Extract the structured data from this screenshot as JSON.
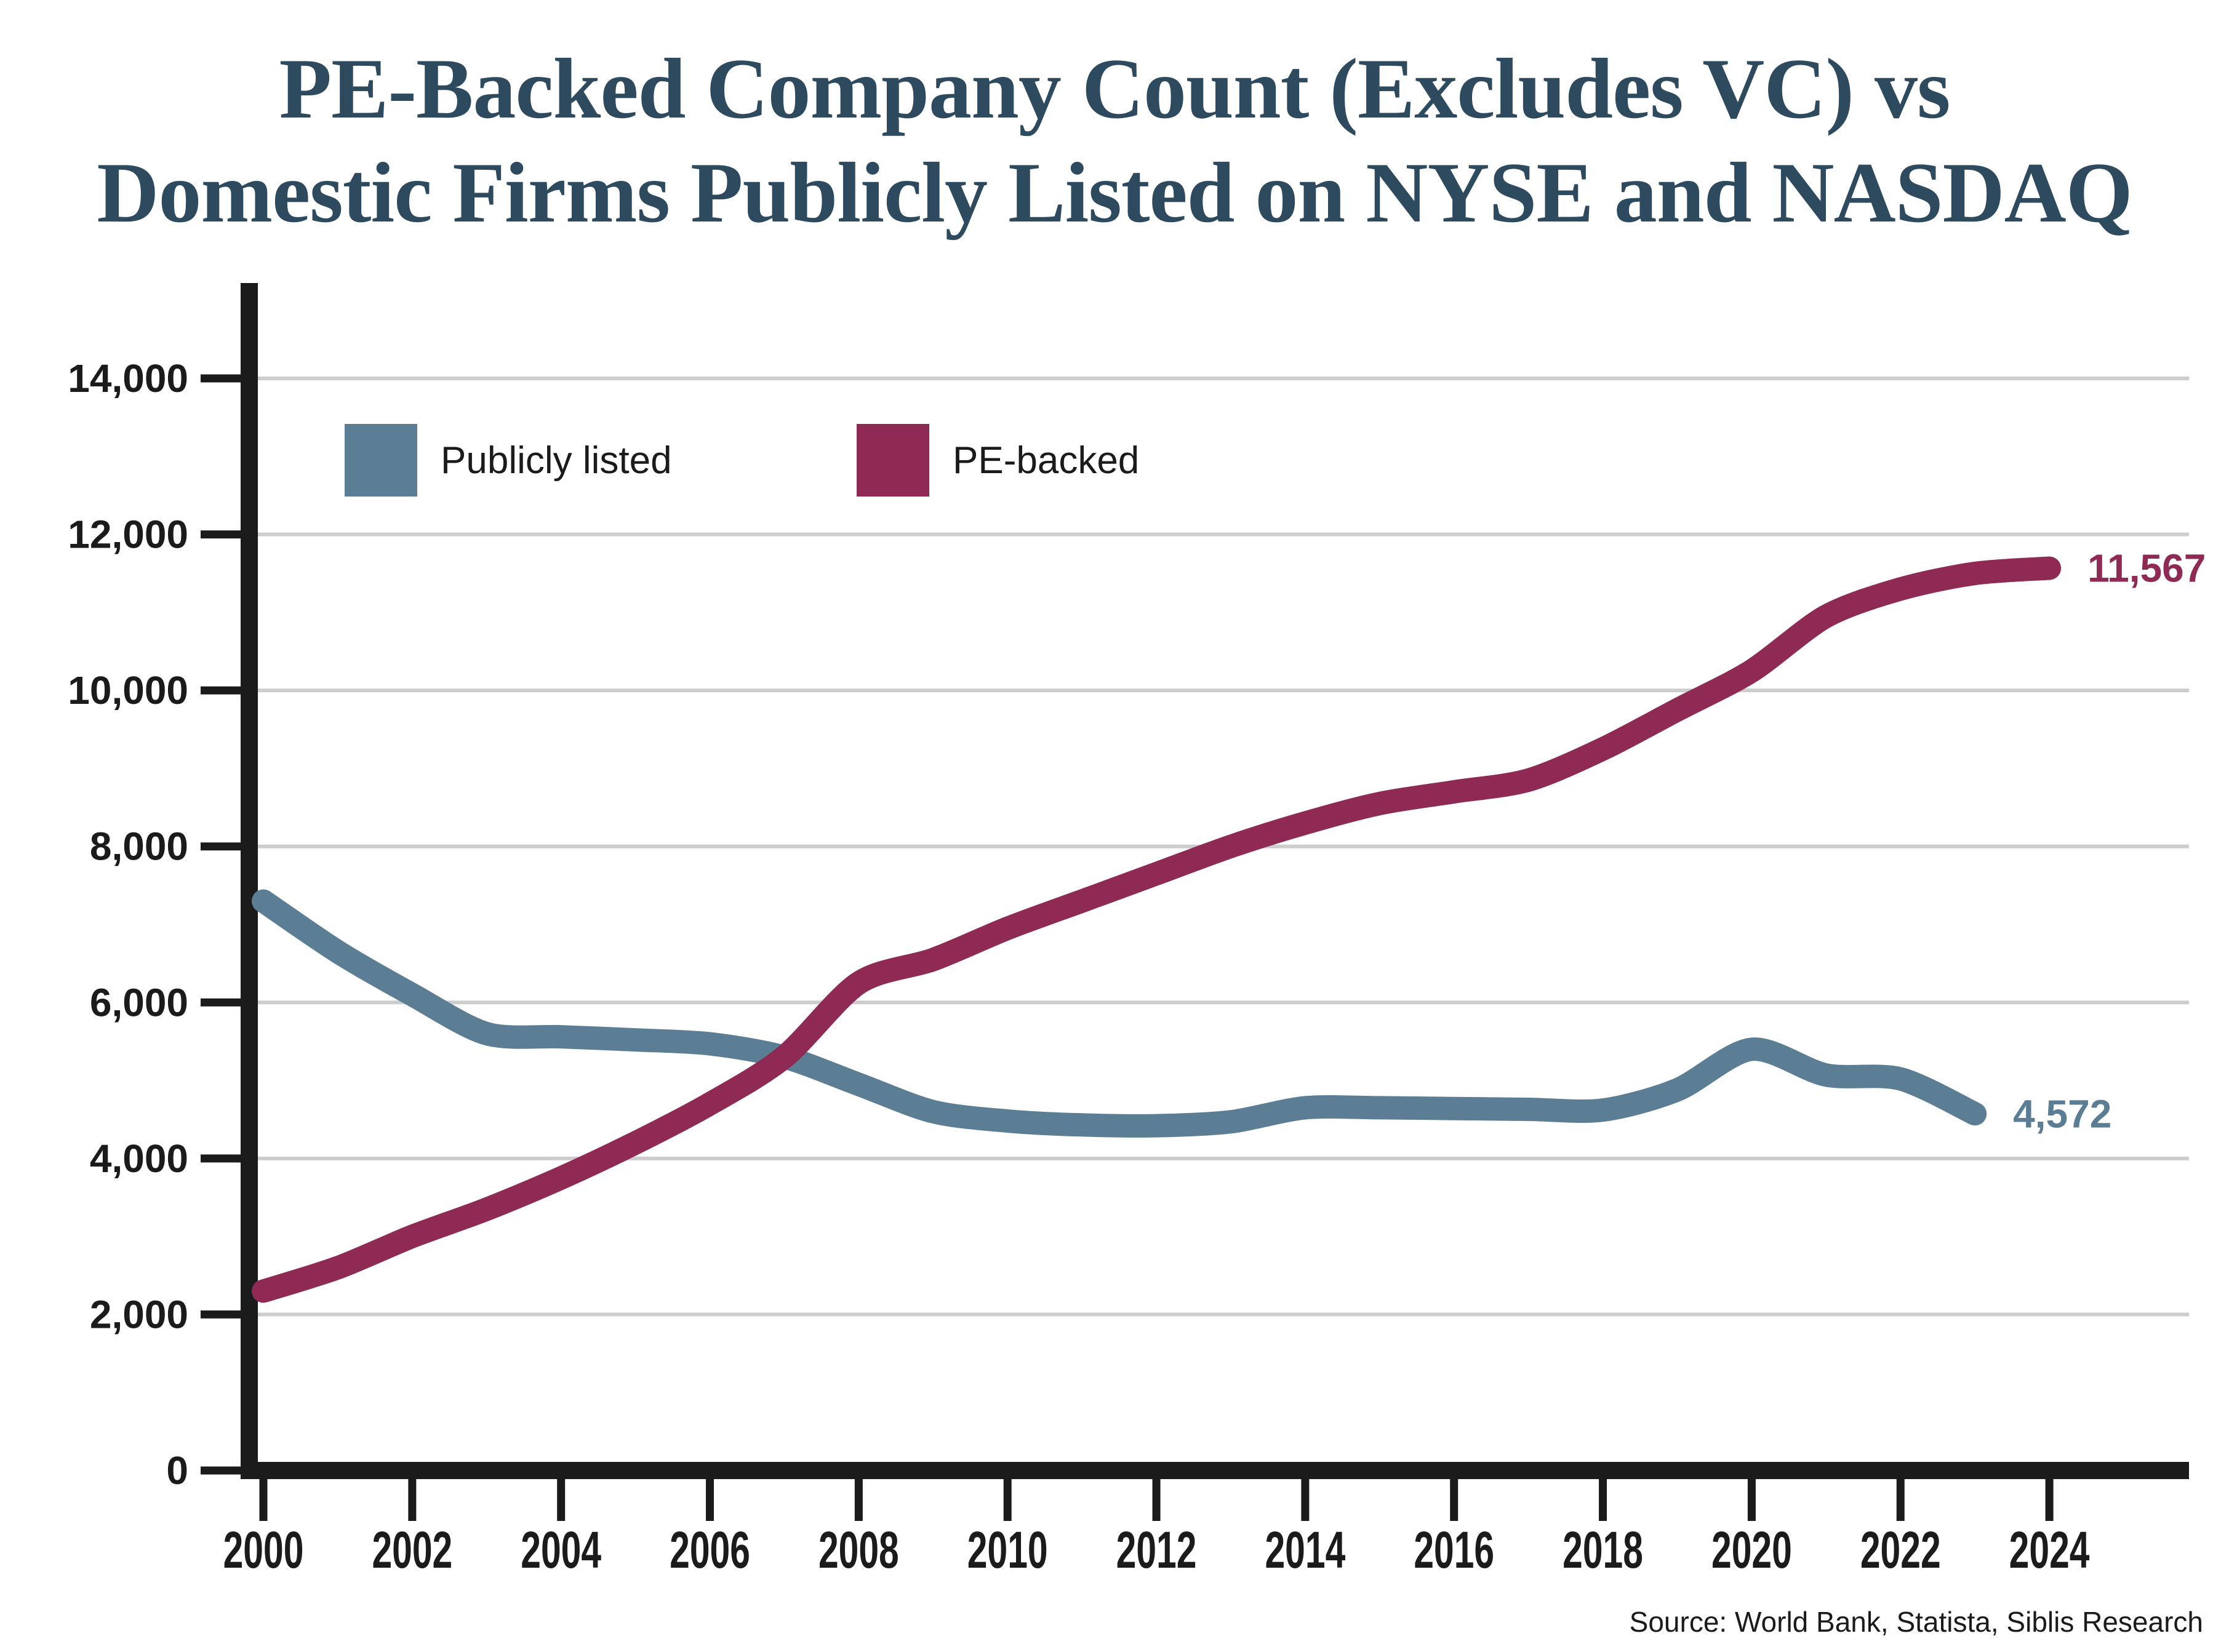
{
  "title": {
    "line1": "PE-Backed Company Count (Excludes VC) vs",
    "line2": "Domestic Firms Publicly Listed on NYSE and NASDAQ"
  },
  "legend": [
    {
      "label": "Publicly listed",
      "color_key": "publicly_listed"
    },
    {
      "label": "PE-backed",
      "color_key": "pe_backed"
    }
  ],
  "source": "Source: World Bank, Statista, Siblis Research",
  "colors": {
    "publicly_listed": "#5b7e94",
    "pe_backed": "#8e2a54",
    "title": "#2d4a5e",
    "gridline": "#cdcdcd",
    "axis": "#1b1b1b",
    "text": "#1b1b1b",
    "background": "#ffffff"
  },
  "chart_data": {
    "type": "line",
    "title": "PE-Backed Company Count (Excludes VC) vs Domestic Firms Publicly Listed on NYSE and NASDAQ",
    "x": [
      2000,
      2001,
      2002,
      2003,
      2004,
      2005,
      2006,
      2007,
      2008,
      2009,
      2010,
      2011,
      2012,
      2013,
      2014,
      2015,
      2016,
      2017,
      2018,
      2019,
      2020,
      2021,
      2022,
      2023,
      2024
    ],
    "series": [
      {
        "name": "Publicly listed",
        "color_key": "publicly_listed",
        "end_label": "4,572",
        "end_value": 4572,
        "values": [
          7300,
          6650,
          6100,
          5600,
          5560,
          5520,
          5470,
          5300,
          4950,
          4600,
          4480,
          4430,
          4420,
          4470,
          4650,
          4650,
          4640,
          4630,
          4620,
          4880,
          5400,
          5070,
          5020,
          4572,
          null
        ]
      },
      {
        "name": "PE-backed",
        "color_key": "pe_backed",
        "end_label": "11,567",
        "end_value": 11567,
        "values": [
          2300,
          2600,
          3000,
          3350,
          3750,
          4200,
          4700,
          5300,
          6250,
          6550,
          6950,
          7300,
          7650,
          8000,
          8300,
          8550,
          8700,
          8850,
          9250,
          9750,
          10250,
          10950,
          11300,
          11500,
          11567
        ]
      }
    ],
    "xlabel": "",
    "ylabel": "",
    "ylim": [
      0,
      15000
    ],
    "yticks": [
      0,
      2000,
      4000,
      6000,
      8000,
      10000,
      12000,
      14000
    ],
    "xticks": [
      2000,
      2002,
      2004,
      2006,
      2008,
      2010,
      2012,
      2014,
      2016,
      2018,
      2020,
      2022,
      2024
    ],
    "grid": true,
    "legend_position": "top-left-inside"
  }
}
